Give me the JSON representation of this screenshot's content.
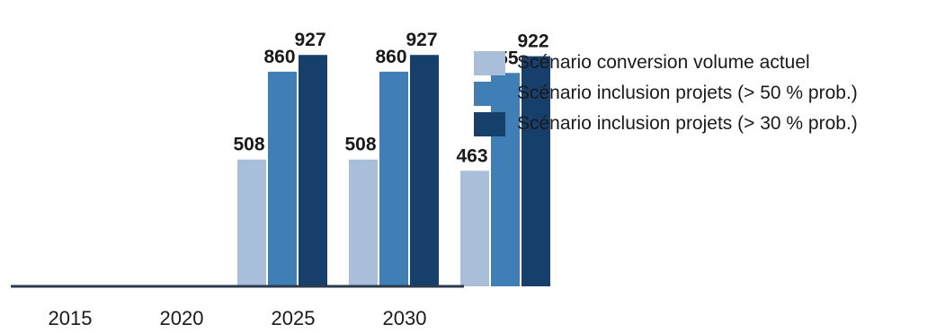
{
  "chart_data": {
    "type": "bar",
    "categories": [
      "2015",
      "2020",
      "2025",
      "2030"
    ],
    "series": [
      {
        "name": "Scénario conversion volume actuel",
        "values": [
          null,
          508,
          508,
          463
        ],
        "color": "#a9bfd9"
      },
      {
        "name": "Scénario inclusion projets (> 50 % prob.)",
        "values": [
          null,
          860,
          860,
          855
        ],
        "color": "#3f7fb6"
      },
      {
        "name": "Scénario inclusion projets (> 30 % prob.)",
        "values": [
          null,
          927,
          927,
          922
        ],
        "color": "#173f6b"
      }
    ],
    "title": "",
    "xlabel": "",
    "ylabel": "",
    "ylim": [
      0,
      1000
    ],
    "grid": false,
    "legend_position": "right"
  }
}
